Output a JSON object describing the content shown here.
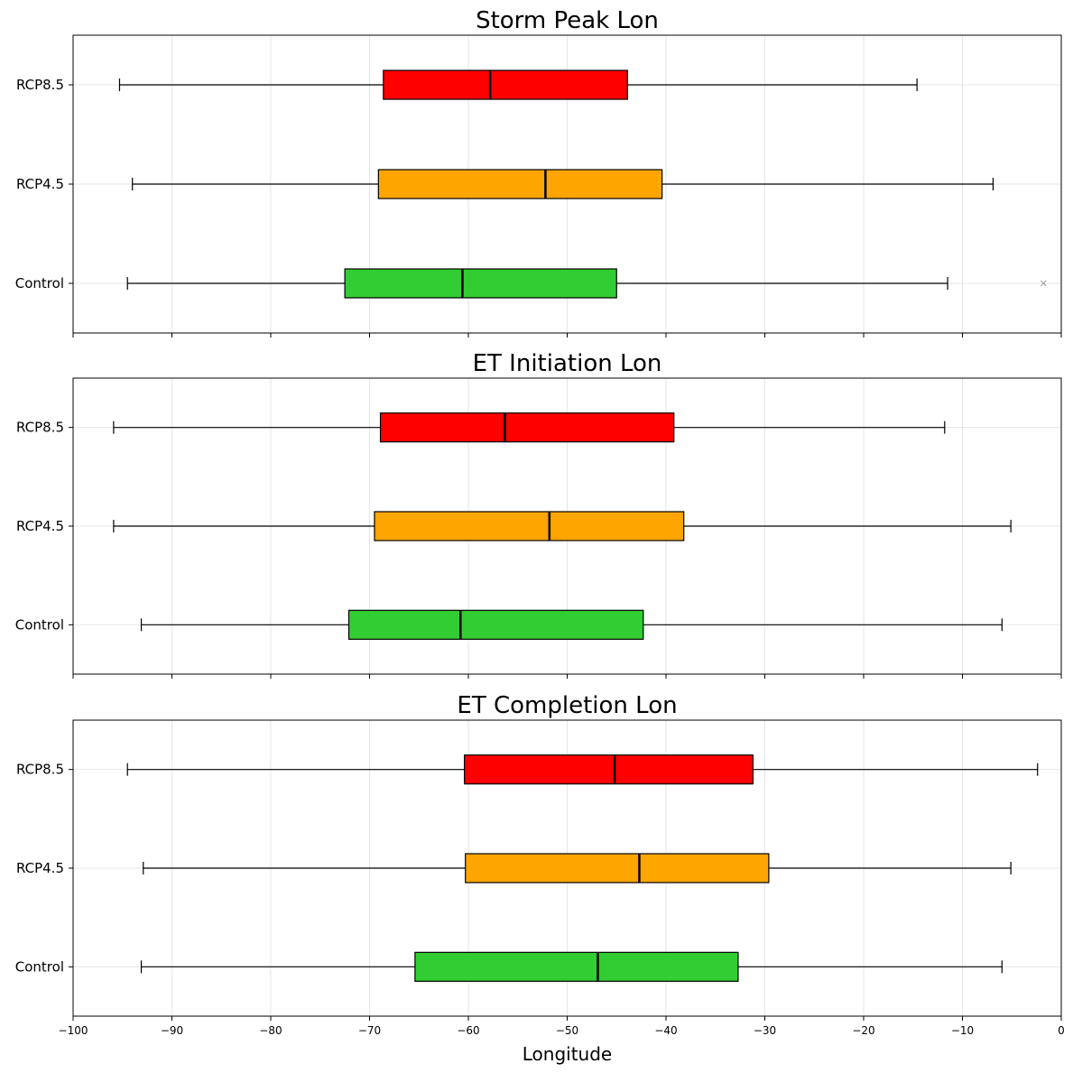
{
  "colors": {
    "RCP8.5": "#ff0000",
    "RCP4.5": "#ffa500",
    "Control": "#32cd32",
    "grid": "#e6e6e6",
    "whisker": "#000000",
    "outlier": "#999999"
  },
  "chart_data": [
    {
      "type": "boxplot",
      "orientation": "horizontal",
      "title": "Storm Peak Lon",
      "xlim": [
        -100,
        0
      ],
      "grid": true,
      "categories": [
        "Control",
        "RCP4.5",
        "RCP8.5"
      ],
      "series": [
        {
          "name": "Control",
          "whisker_low": -94.5,
          "q1": -72.5,
          "median": -60.6,
          "q3": -45.0,
          "whisker_high": -11.5,
          "outliers": [
            -1.8
          ]
        },
        {
          "name": "RCP4.5",
          "whisker_low": -94.0,
          "q1": -69.1,
          "median": -52.2,
          "q3": -40.4,
          "whisker_high": -6.9,
          "outliers": []
        },
        {
          "name": "RCP8.5",
          "whisker_low": -95.3,
          "q1": -68.6,
          "median": -57.8,
          "q3": -43.9,
          "whisker_high": -14.6,
          "outliers": []
        }
      ]
    },
    {
      "type": "boxplot",
      "orientation": "horizontal",
      "title": "ET Initiation Lon",
      "xlim": [
        -100,
        0
      ],
      "grid": true,
      "categories": [
        "Control",
        "RCP4.5",
        "RCP8.5"
      ],
      "series": [
        {
          "name": "Control",
          "whisker_low": -93.1,
          "q1": -72.1,
          "median": -60.8,
          "q3": -42.3,
          "whisker_high": -6.0,
          "outliers": []
        },
        {
          "name": "RCP4.5",
          "whisker_low": -95.9,
          "q1": -69.5,
          "median": -51.8,
          "q3": -38.2,
          "whisker_high": -5.1,
          "outliers": []
        },
        {
          "name": "RCP8.5",
          "whisker_low": -95.9,
          "q1": -68.9,
          "median": -56.3,
          "q3": -39.2,
          "whisker_high": -11.8,
          "outliers": []
        }
      ]
    },
    {
      "type": "boxplot",
      "orientation": "horizontal",
      "title": "ET Completion Lon",
      "xlabel": "Longitude",
      "xlim": [
        -100,
        0
      ],
      "xticks": [
        -100,
        -90,
        -80,
        -70,
        -60,
        -50,
        -40,
        -30,
        -20,
        -10,
        0
      ],
      "xtick_labels": [
        "−100",
        "−90",
        "−80",
        "−70",
        "−60",
        "−50",
        "−40",
        "−30",
        "−20",
        "−10",
        "0"
      ],
      "grid": true,
      "categories": [
        "Control",
        "RCP4.5",
        "RCP8.5"
      ],
      "series": [
        {
          "name": "Control",
          "whisker_low": -93.1,
          "q1": -65.4,
          "median": -46.9,
          "q3": -32.7,
          "whisker_high": -6.0,
          "outliers": []
        },
        {
          "name": "RCP4.5",
          "whisker_low": -92.9,
          "q1": -60.3,
          "median": -42.7,
          "q3": -29.6,
          "whisker_high": -5.1,
          "outliers": []
        },
        {
          "name": "RCP8.5",
          "whisker_low": -94.5,
          "q1": -60.4,
          "median": -45.2,
          "q3": -31.2,
          "whisker_high": -2.4,
          "outliers": []
        }
      ]
    }
  ]
}
